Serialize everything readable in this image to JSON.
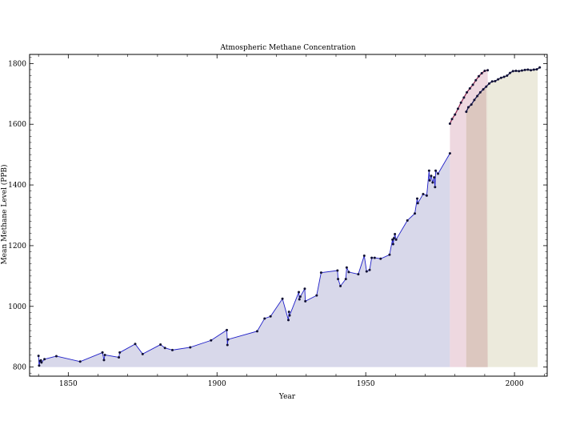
{
  "chart_data": {
    "type": "area",
    "title": "Atmospheric Methane Concentration",
    "xlabel": "Year",
    "ylabel": "Mean Methane Level (PPB)",
    "xlim": [
      1837,
      2011
    ],
    "ylim": [
      770,
      1830
    ],
    "baseline": 800,
    "x_ticks": [
      1850,
      1900,
      1950,
      2000
    ],
    "y_ticks": [
      800,
      1000,
      1200,
      1400,
      1600,
      1800
    ],
    "grid": false,
    "legend": "none",
    "series": [
      {
        "color": "#1f1fc8",
        "fill": "#d8d8ea",
        "x": [
          1840,
          1840.2,
          1840.5,
          1840.8,
          1841,
          1842,
          1846,
          1854,
          1861.5,
          1862,
          1862.3,
          1867,
          1867.3,
          1872.5,
          1875,
          1881,
          1882.5,
          1885,
          1891,
          1898,
          1903.3,
          1903.5,
          1903.7,
          1913.5,
          1916,
          1918,
          1922,
          1924,
          1924.2,
          1924.4,
          1927.5,
          1927.7,
          1928,
          1929.5,
          1929.7,
          1933.5,
          1935,
          1940.5,
          1940.7,
          1941.5,
          1943.3,
          1943.6,
          1944.3,
          1947.5,
          1949.5,
          1950.3,
          1951.3,
          1952,
          1953,
          1955,
          1958,
          1959,
          1959.2,
          1959.5,
          1959.8,
          1960.2,
          1964,
          1966.5,
          1967.3,
          1967.5,
          1969.3,
          1970.5,
          1971.3,
          1971.5,
          1972,
          1972.5,
          1973,
          1973.3,
          1973.5,
          1974.3,
          1978.3
        ],
        "y": [
          837,
          805,
          820,
          822,
          815,
          826,
          836,
          818,
          848,
          823,
          840,
          832,
          848,
          876,
          843,
          874,
          863,
          856,
          865,
          888,
          922,
          873,
          891,
          918,
          960,
          967,
          1025,
          955,
          982,
          970,
          1047,
          1023,
          1032,
          1058,
          1017,
          1036,
          1111,
          1118,
          1090,
          1067,
          1090,
          1128,
          1113,
          1106,
          1167,
          1115,
          1120,
          1160,
          1160,
          1157,
          1170,
          1220,
          1205,
          1225,
          1238,
          1220,
          1283,
          1306,
          1355,
          1340,
          1370,
          1365,
          1447,
          1415,
          1430,
          1408,
          1425,
          1393,
          1447,
          1437,
          1504
        ]
      },
      {
        "color": "#8e2a55",
        "fill": "#eed8e0",
        "x": [
          1978.3,
          1979,
          1980,
          1981,
          1982,
          1983,
          1984,
          1985,
          1986,
          1987,
          1988,
          1989,
          1990,
          1991
        ],
        "y": [
          1602,
          1617,
          1632,
          1651,
          1671,
          1688,
          1705,
          1718,
          1730,
          1745,
          1758,
          1768,
          1776,
          1778
        ]
      },
      {
        "color": "#1a1a5a",
        "fill": "#e9e6d6",
        "x": [
          1983.8,
          1984.5,
          1985.5,
          1986.5,
          1987.5,
          1988.5,
          1989.5,
          1990.5,
          1991.5,
          1992.5,
          1993.5,
          1994.5,
          1995.5,
          1996.5,
          1997.5,
          1998.5,
          1999.5,
          2000.5,
          2001.5,
          2002.5,
          2003.5,
          2004.5,
          2005.5,
          2006.5,
          2007.5,
          2008.5
        ],
        "y": [
          1641,
          1656,
          1665,
          1680,
          1693,
          1705,
          1715,
          1724,
          1734,
          1741,
          1742,
          1748,
          1753,
          1756,
          1760,
          1769,
          1775,
          1776,
          1775,
          1777,
          1779,
          1780,
          1778,
          1780,
          1781,
          1787
        ]
      }
    ]
  }
}
